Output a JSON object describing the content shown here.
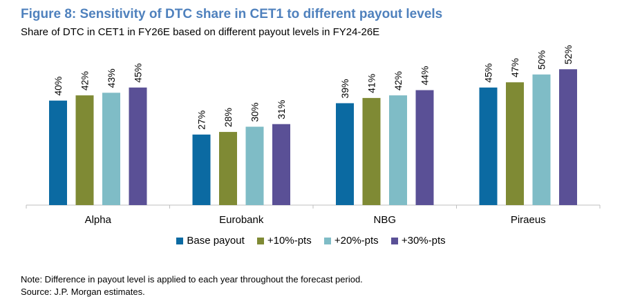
{
  "figure": {
    "title": "Figure 8: Sensitivity of DTC share in CET1 to different payout levels",
    "subtitle": "Share of DTC in CET1 in FY26E based on different payout levels in FY24-26E"
  },
  "chart_data": {
    "type": "bar",
    "categories": [
      "Alpha",
      "Eurobank",
      "NBG",
      "Piraeus"
    ],
    "series": [
      {
        "name": "Base payout",
        "color": "#0b6aa2",
        "values": [
          40,
          27,
          39,
          45
        ],
        "labels": [
          "40%",
          "27%",
          "39%",
          "45%"
        ]
      },
      {
        "name": "+10%-pts",
        "color": "#7f8a34",
        "values": [
          42,
          28,
          41,
          47
        ],
        "labels": [
          "42%",
          "28%",
          "41%",
          "47%"
        ]
      },
      {
        "name": "+20%-pts",
        "color": "#7fbcc6",
        "values": [
          43,
          30,
          42,
          50
        ],
        "labels": [
          "43%",
          "30%",
          "42%",
          "50%"
        ]
      },
      {
        "name": "+30%-pts",
        "color": "#5a5096",
        "values": [
          45,
          31,
          44,
          52
        ],
        "labels": [
          "45%",
          "31%",
          "44%",
          "52%"
        ]
      }
    ],
    "ylim": [
      0,
      60
    ],
    "grid": false,
    "legend_position": "bottom"
  },
  "notes": {
    "note": "Note: Difference in payout level is applied to each year throughout the forecast period.",
    "source": "Source: J.P. Morgan estimates."
  }
}
